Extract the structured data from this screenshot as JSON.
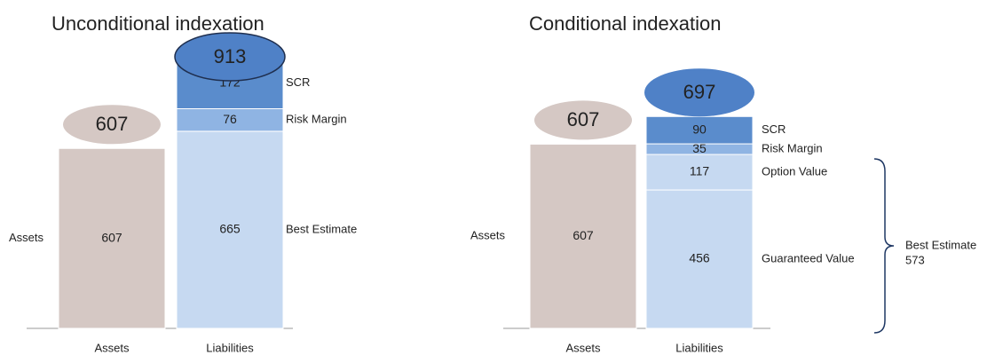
{
  "chart_data": [
    {
      "type": "bar",
      "stacked": true,
      "title": "Unconditional indexation",
      "categories": [
        "Assets",
        "Liabilities"
      ],
      "series": [
        {
          "name": "Assets",
          "color": "#d5c8c4",
          "values": [
            607,
            null
          ]
        },
        {
          "name": "Best Estimate",
          "color": "#c6d9f1",
          "values": [
            null,
            665
          ]
        },
        {
          "name": "Risk Margin",
          "color": "#8fb4e3",
          "values": [
            null,
            76
          ]
        },
        {
          "name": "SCR",
          "color": "#5a8ccc",
          "values": [
            null,
            172
          ]
        }
      ],
      "totals": [
        607,
        913
      ]
    },
    {
      "type": "bar",
      "stacked": true,
      "title": "Conditional indexation",
      "categories": [
        "Assets",
        "Liabilities"
      ],
      "series": [
        {
          "name": "Assets",
          "color": "#d5c8c4",
          "values": [
            607,
            null
          ]
        },
        {
          "name": "Guaranteed Value",
          "color": "#c6d9f1",
          "values": [
            null,
            456
          ]
        },
        {
          "name": "Option Value",
          "color": "#c6d9f1",
          "values": [
            null,
            117
          ]
        },
        {
          "name": "Risk Margin",
          "color": "#8fb4e3",
          "values": [
            null,
            35
          ]
        },
        {
          "name": "SCR",
          "color": "#5a8ccc",
          "values": [
            null,
            90
          ]
        }
      ],
      "totals": [
        607,
        697
      ],
      "brace": {
        "label": "Best Estimate",
        "value": 573
      }
    }
  ]
}
